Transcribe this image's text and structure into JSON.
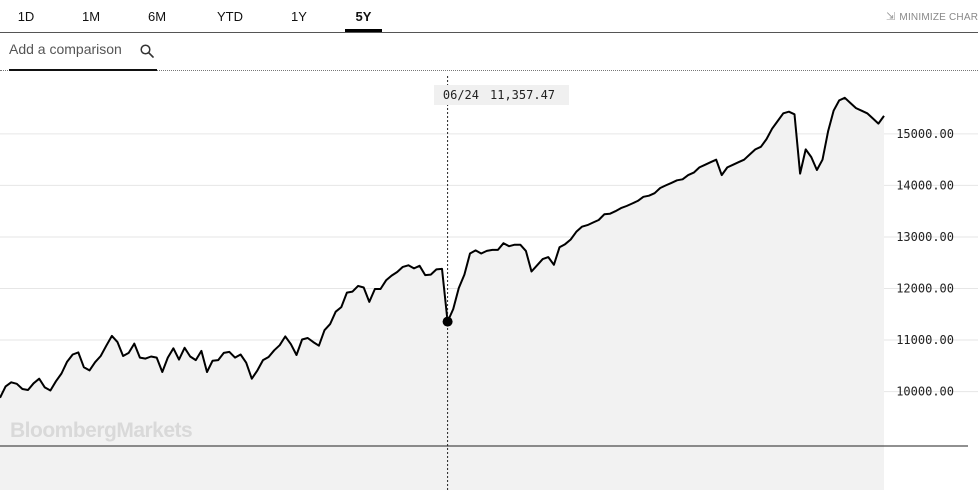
{
  "tabs": [
    {
      "label": "1D",
      "active": false
    },
    {
      "label": "1M",
      "active": false
    },
    {
      "label": "6M",
      "active": false
    },
    {
      "label": "YTD",
      "active": false
    },
    {
      "label": "1Y",
      "active": false
    },
    {
      "label": "5Y",
      "active": true
    }
  ],
  "minimize_label": "MINIMIZE CHART",
  "compare": {
    "placeholder": "Add a comparison"
  },
  "watermark": "BloombergMarkets",
  "tooltip": {
    "date": "06/24",
    "value": "11,357.47"
  },
  "colors": {
    "line": "#000000",
    "area": "#f2f2f2",
    "grid": "#e6e6e6",
    "tooltip_bg": "#f0f0f0",
    "watermark": "#d9d9d9"
  },
  "chart_data": {
    "type": "area",
    "period": "5Y",
    "y_ticks": [
      "10000.00",
      "11000.00",
      "12000.00",
      "13000.00",
      "14000.00",
      "15000.00"
    ],
    "ylim": [
      8090,
      16240
    ],
    "grid": true,
    "hover": {
      "index": 80,
      "date": "06/24",
      "value": 11357.47
    },
    "values": [
      9880,
      10100,
      10180,
      10150,
      10050,
      10030,
      10160,
      10250,
      10080,
      10020,
      10200,
      10350,
      10580,
      10720,
      10760,
      10470,
      10410,
      10570,
      10690,
      10890,
      11080,
      10960,
      10690,
      10750,
      10930,
      10660,
      10640,
      10680,
      10660,
      10380,
      10660,
      10840,
      10620,
      10850,
      10680,
      10610,
      10790,
      10380,
      10600,
      10610,
      10750,
      10770,
      10660,
      10720,
      10560,
      10250,
      10410,
      10610,
      10670,
      10800,
      10900,
      11070,
      10920,
      10710,
      11010,
      11040,
      10960,
      10890,
      11190,
      11310,
      11550,
      11640,
      11920,
      11940,
      12050,
      12020,
      11740,
      11990,
      11990,
      12160,
      12250,
      12320,
      12420,
      12450,
      12390,
      12440,
      12260,
      12270,
      12370,
      12380,
      11357,
      11600,
      12010,
      12270,
      12680,
      12740,
      12680,
      12730,
      12750,
      12750,
      12880,
      12820,
      12850,
      12850,
      12730,
      12330,
      12450,
      12570,
      12610,
      12460,
      12800,
      12860,
      12950,
      13100,
      13200,
      13230,
      13280,
      13330,
      13440,
      13450,
      13500,
      13560,
      13600,
      13650,
      13700,
      13780,
      13800,
      13850,
      13950,
      14000,
      14050,
      14100,
      14120,
      14200,
      14250,
      14350,
      14400,
      14450,
      14500,
      14200,
      14350,
      14400,
      14450,
      14500,
      14600,
      14700,
      14750,
      14900,
      15100,
      15250,
      15400,
      15430,
      15380,
      14230,
      14700,
      14550,
      14300,
      14500,
      15050,
      15450,
      15650,
      15700,
      15600,
      15500,
      15450,
      15400,
      15300,
      15200,
      15350
    ]
  }
}
